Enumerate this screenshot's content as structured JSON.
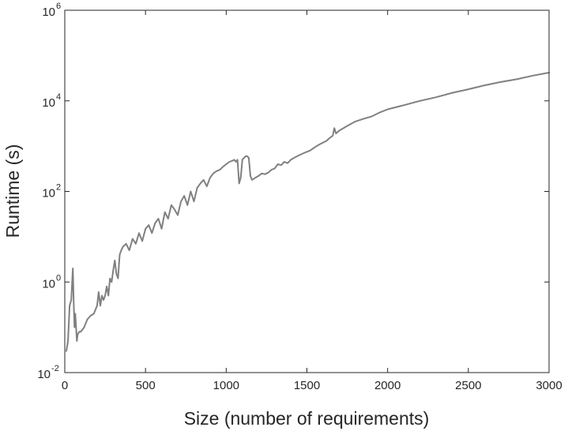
{
  "chart_data": {
    "type": "line",
    "xlabel": "Size (number of requirements)",
    "ylabel": "Runtime (s)",
    "xlim": [
      0,
      3000
    ],
    "ylim": [
      0.01,
      1000000
    ],
    "yscale": "log",
    "grid": false,
    "box": true,
    "line_color": "#808080",
    "x_ticks": [
      {
        "value": 0,
        "label": "0"
      },
      {
        "value": 500,
        "label": "500"
      },
      {
        "value": 1000,
        "label": "1000"
      },
      {
        "value": 1500,
        "label": "1500"
      },
      {
        "value": 2000,
        "label": "2000"
      },
      {
        "value": 2500,
        "label": "2500"
      },
      {
        "value": 3000,
        "label": "3000"
      }
    ],
    "y_ticks": [
      {
        "value": 0.01,
        "base": "10",
        "exp": "-2"
      },
      {
        "value": 1,
        "base": "10",
        "exp": "0"
      },
      {
        "value": 100,
        "base": "10",
        "exp": "2"
      },
      {
        "value": 10000,
        "base": "10",
        "exp": "4"
      },
      {
        "value": 1000000,
        "base": "10",
        "exp": "6"
      }
    ],
    "series": [
      {
        "x": [
          10,
          20,
          30,
          40,
          50,
          55,
          60,
          65,
          70,
          75,
          80,
          90,
          100,
          120,
          140,
          160,
          180,
          200,
          210,
          220,
          230,
          240,
          250,
          260,
          270,
          280,
          290,
          300,
          310,
          320,
          330,
          340,
          350,
          360,
          380,
          400,
          420,
          440,
          460,
          480,
          500,
          520,
          540,
          560,
          580,
          600,
          620,
          640,
          660,
          680,
          700,
          720,
          740,
          760,
          780,
          800,
          820,
          840,
          860,
          880,
          900,
          920,
          940,
          960,
          980,
          1000,
          1020,
          1040,
          1050,
          1060,
          1070,
          1080,
          1090,
          1100,
          1110,
          1120,
          1130,
          1140,
          1150,
          1160,
          1180,
          1200,
          1220,
          1240,
          1260,
          1280,
          1300,
          1320,
          1340,
          1360,
          1380,
          1400,
          1420,
          1440,
          1460,
          1480,
          1500,
          1520,
          1540,
          1560,
          1580,
          1600,
          1620,
          1640,
          1660,
          1670,
          1680,
          1700,
          1750,
          1800,
          1850,
          1900,
          1950,
          2000,
          2100,
          2200,
          2300,
          2400,
          2500,
          2600,
          2700,
          2800,
          2900,
          3000
        ],
        "y": [
          0.03,
          0.05,
          0.3,
          0.4,
          2.0,
          0.4,
          0.1,
          0.2,
          0.1,
          0.05,
          0.07,
          0.08,
          0.08,
          0.1,
          0.15,
          0.18,
          0.2,
          0.3,
          0.6,
          0.3,
          0.5,
          0.4,
          0.5,
          0.8,
          0.5,
          1.2,
          1.0,
          1.8,
          3.0,
          1.5,
          1.2,
          4.0,
          5.0,
          6.0,
          7.0,
          5.0,
          9.0,
          7.0,
          12.0,
          8.0,
          15.0,
          18.0,
          12.0,
          20.0,
          25.0,
          15.0,
          35.0,
          25.0,
          50.0,
          40.0,
          30.0,
          60.0,
          80.0,
          50.0,
          100.0,
          60.0,
          120.0,
          150.0,
          180.0,
          130.0,
          200.0,
          250.0,
          280.0,
          300.0,
          350.0,
          400.0,
          450.0,
          480.0,
          500.0,
          450.0,
          500.0,
          150.0,
          200.0,
          500.0,
          550.0,
          600.0,
          600.0,
          550.0,
          220.0,
          180.0,
          200.0,
          220.0,
          250.0,
          240.0,
          260.0,
          300.0,
          320.0,
          400.0,
          380.0,
          450.0,
          420.0,
          500.0,
          550.0,
          600.0,
          650.0,
          700.0,
          750.0,
          800.0,
          900.0,
          1000.0,
          1100.0,
          1200.0,
          1300.0,
          1500.0,
          1700.0,
          2500.0,
          1900.0,
          2200.0,
          2800.0,
          3500.0,
          4000.0,
          4500.0,
          5500.0,
          6500.0,
          8000.0,
          10000.0,
          12000.0,
          15000.0,
          18000.0,
          22000.0,
          26000.0,
          30000.0,
          36000.0,
          42000.0
        ]
      }
    ]
  }
}
